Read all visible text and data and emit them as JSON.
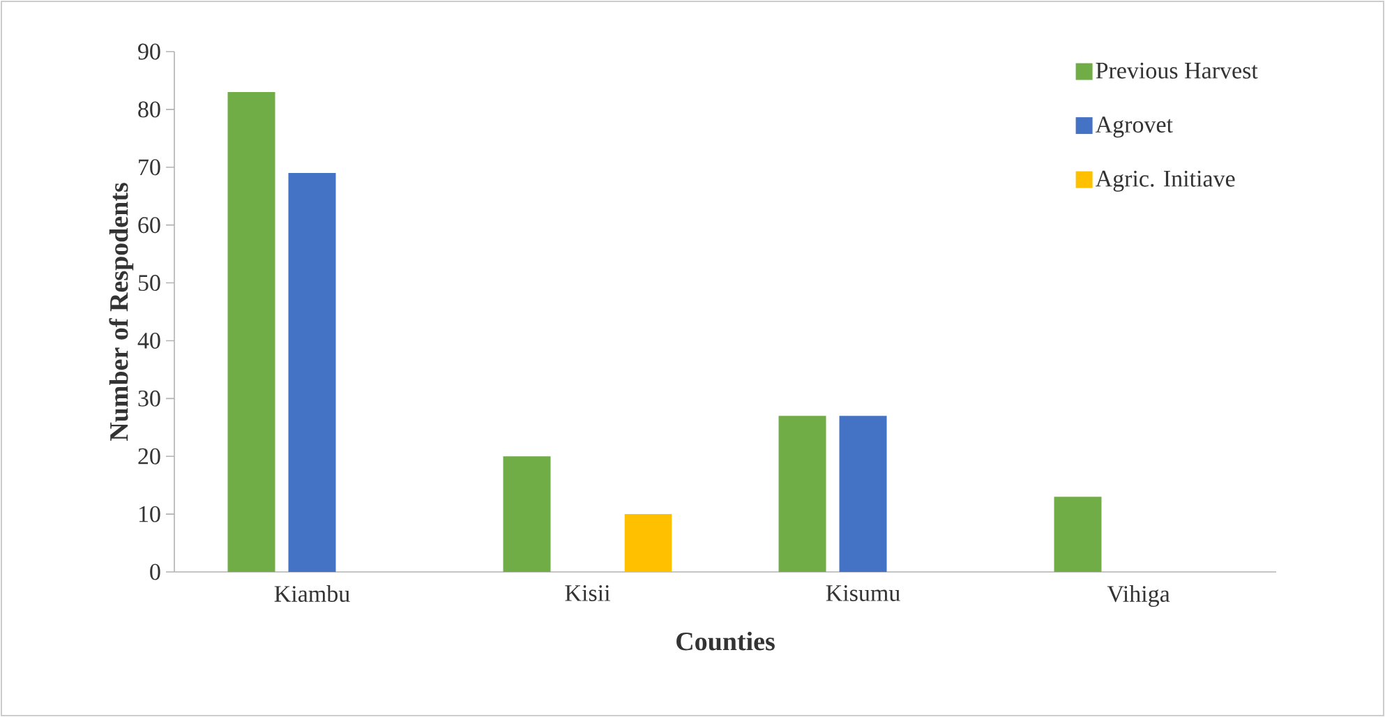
{
  "chart_data": {
    "type": "bar",
    "xlabel": "Counties",
    "ylabel": "Number of Respodents",
    "categories": [
      "Kiambu",
      "Kisii",
      "Kisumu",
      "Vihiga"
    ],
    "series": [
      {
        "name": "Previous Harvest",
        "color": "#70ad47",
        "values": [
          83,
          20,
          27,
          13
        ]
      },
      {
        "name": "Agrovet",
        "color": "#4472c4",
        "values": [
          69,
          null,
          27,
          null
        ]
      },
      {
        "name": "Agric. Initiave",
        "color": "#ffc000",
        "values": [
          null,
          10,
          null,
          null
        ]
      }
    ],
    "ylim": [
      0,
      90
    ],
    "yticks": [
      0,
      10,
      20,
      30,
      40,
      50,
      60,
      70,
      80,
      90
    ],
    "legend": "top right"
  }
}
